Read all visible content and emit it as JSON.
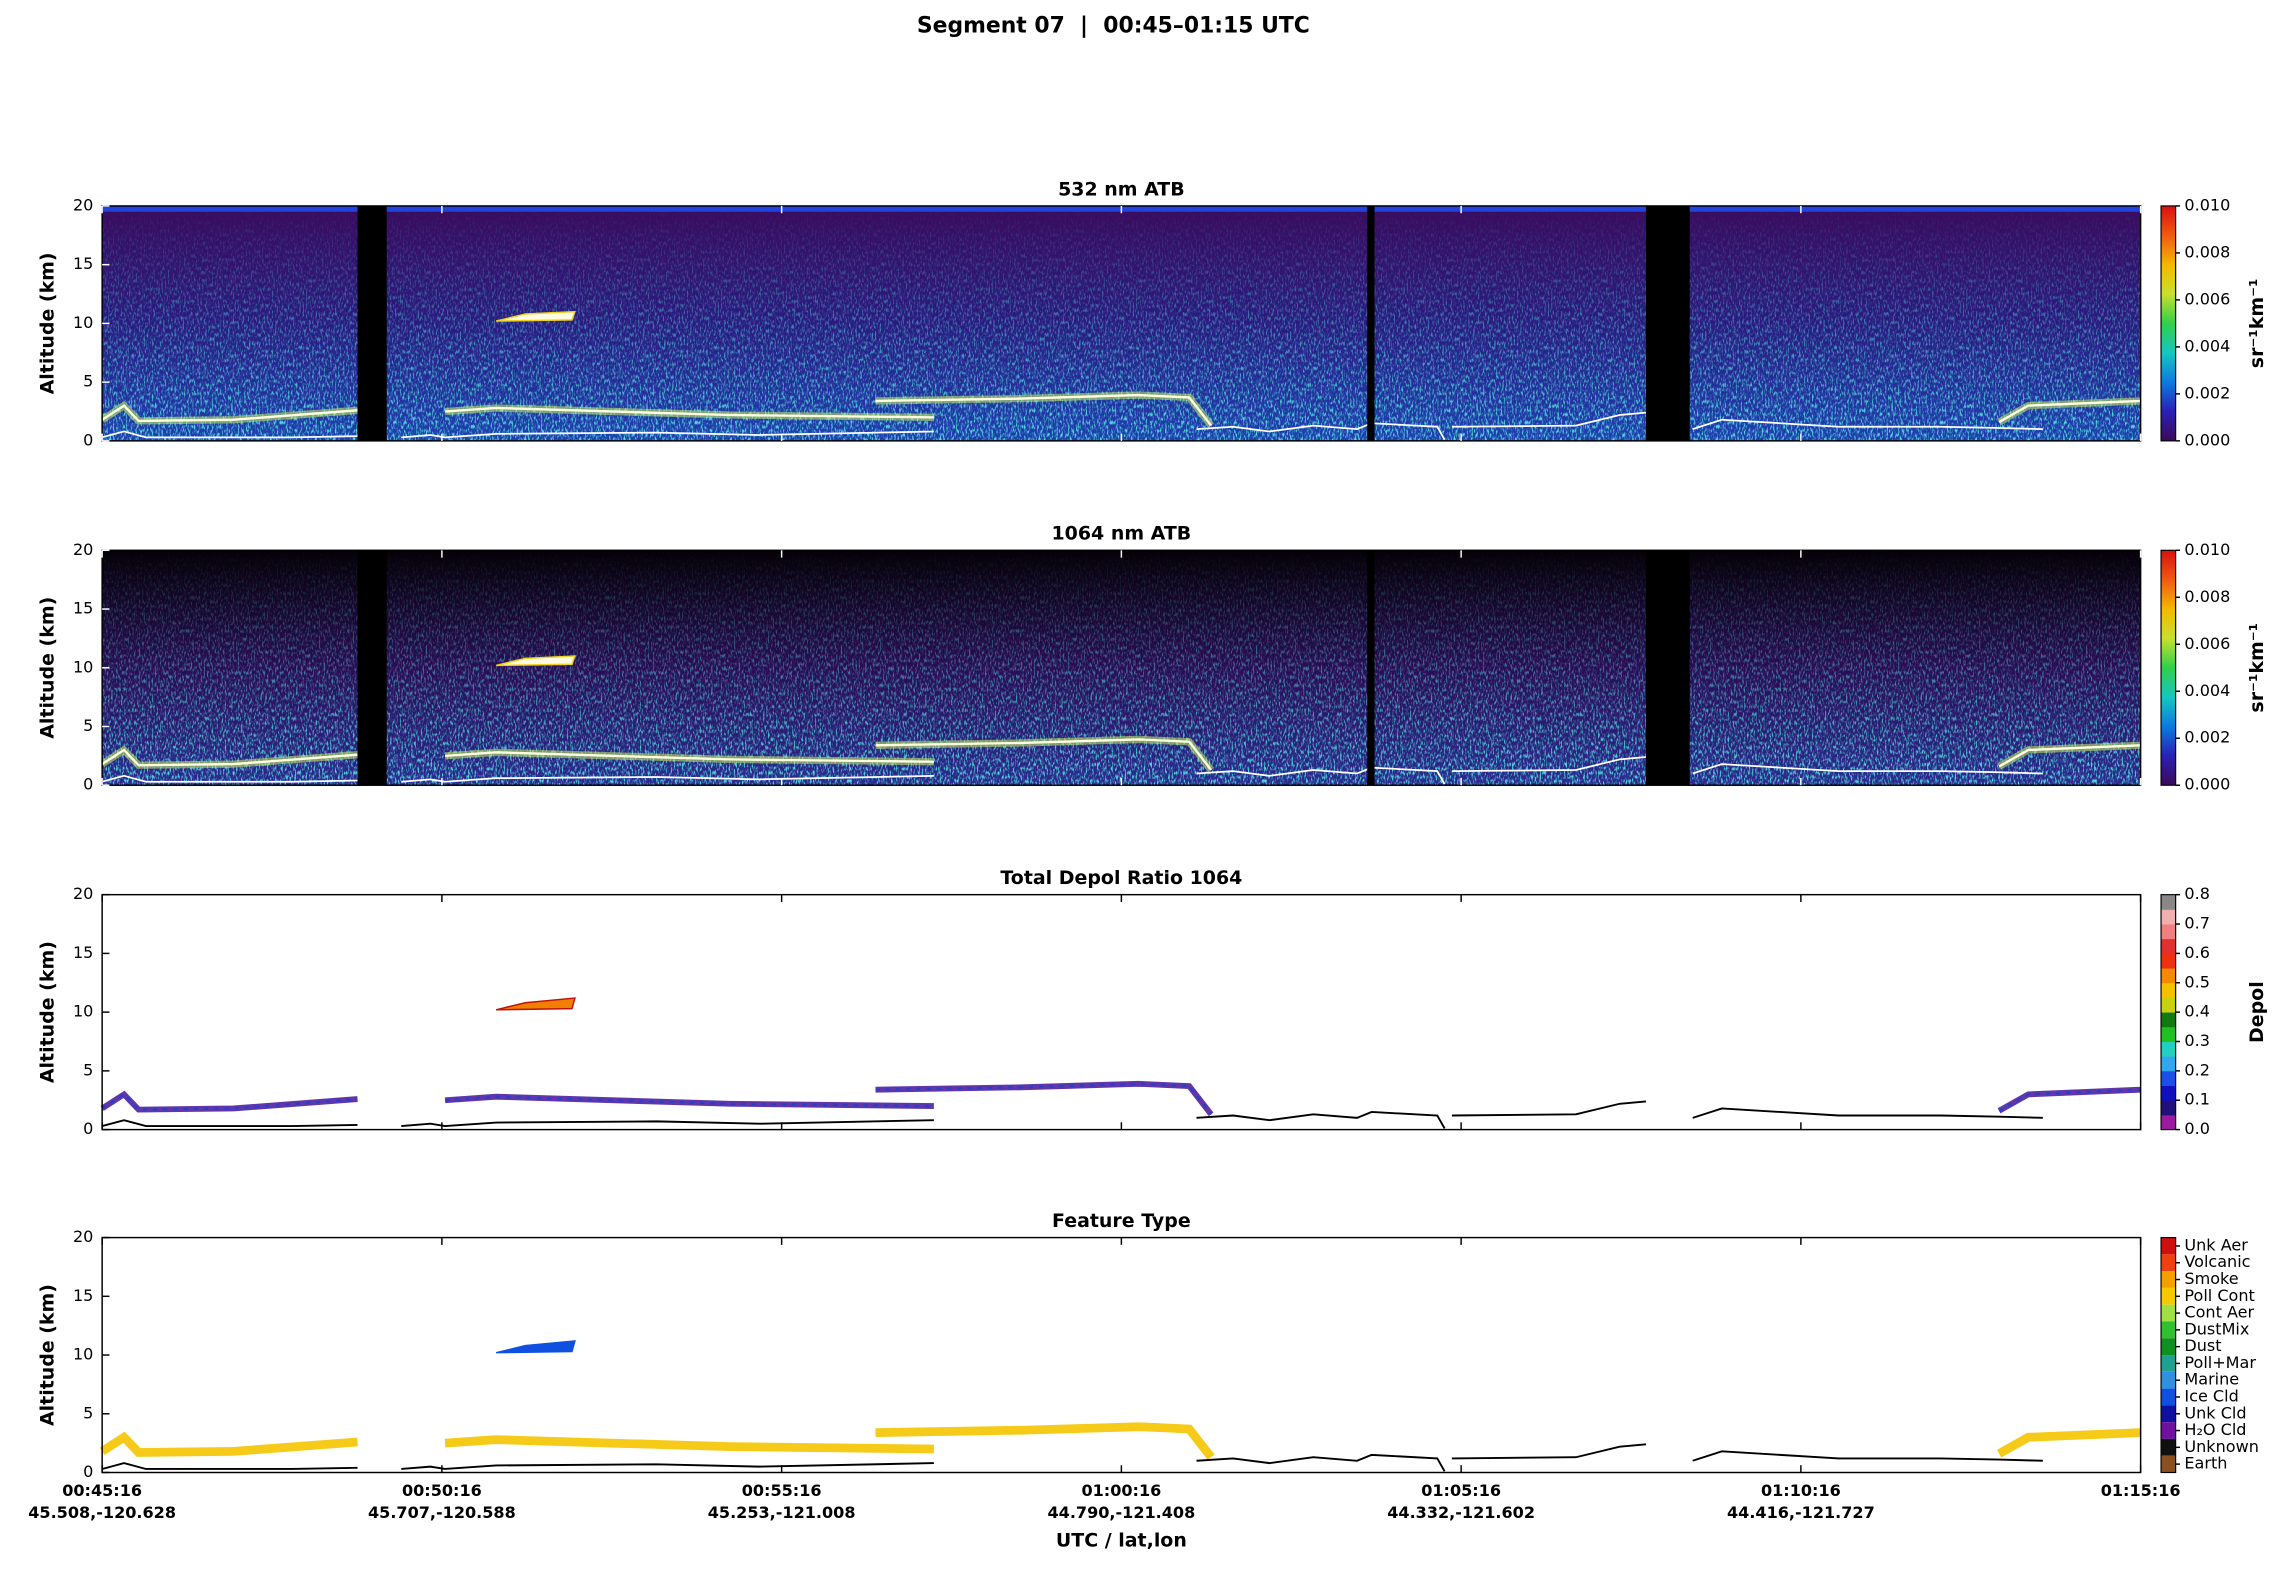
{
  "title": "Segment 07  |  00:45–01:15 UTC",
  "chart_data": [
    {
      "type": "heatmap",
      "title": "532 nm ATB",
      "ylabel": "Altitude (km)",
      "ylim": [
        0,
        20
      ],
      "yticks": [
        0,
        5,
        10,
        15,
        20
      ],
      "background": [
        "#3a0c5e",
        "#2a1a80",
        "#1e3fb0"
      ],
      "top_band": "#2244dd",
      "colorbar": {
        "label": "sr⁻¹km⁻¹",
        "lim": [
          0,
          0.01
        ],
        "ticks": [
          {
            "value": 0,
            "label": "0.000"
          },
          {
            "value": 0.002,
            "label": "0.002"
          },
          {
            "value": 0.004,
            "label": "0.004"
          },
          {
            "value": 0.006,
            "label": "0.006"
          },
          {
            "value": 0.008,
            "label": "0.008"
          },
          {
            "value": 0.01,
            "label": "0.010"
          }
        ],
        "colors": [
          "#3b0a57",
          "#2a1fb5",
          "#0a7be0",
          "#12c8c0",
          "#2ed14a",
          "#c8e02a",
          "#f5b800",
          "#f05a10",
          "#d81010"
        ]
      }
    },
    {
      "type": "heatmap",
      "title": "1064 nm ATB",
      "ylabel": "Altitude (km)",
      "ylim": [
        0,
        20
      ],
      "yticks": [
        0,
        5,
        10,
        15,
        20
      ],
      "background": [
        "#050208",
        "#2a0c55",
        "#2a2a90"
      ],
      "colorbar": {
        "label": "sr⁻¹km⁻¹",
        "lim": [
          0,
          0.01
        ],
        "ticks": [
          {
            "value": 0,
            "label": "0.000"
          },
          {
            "value": 0.002,
            "label": "0.002"
          },
          {
            "value": 0.004,
            "label": "0.004"
          },
          {
            "value": 0.006,
            "label": "0.006"
          },
          {
            "value": 0.008,
            "label": "0.008"
          },
          {
            "value": 0.01,
            "label": "0.010"
          }
        ],
        "colors": [
          "#3b0a57",
          "#2a1fb5",
          "#0a7be0",
          "#12c8c0",
          "#2ed14a",
          "#c8e02a",
          "#f5b800",
          "#f05a10",
          "#d81010"
        ]
      }
    },
    {
      "type": "heatmap",
      "title": "Total Depol Ratio 1064",
      "ylabel": "Altitude (km)",
      "ylim": [
        0,
        20
      ],
      "yticks": [
        0,
        5,
        10,
        15,
        20
      ],
      "colorbar": {
        "label": "Depol",
        "lim": [
          0,
          0.8
        ],
        "ticks": [
          {
            "value": 0,
            "label": "0.0"
          },
          {
            "value": 0.1,
            "label": "0.1"
          },
          {
            "value": 0.2,
            "label": "0.2"
          },
          {
            "value": 0.3,
            "label": "0.3"
          },
          {
            "value": 0.4,
            "label": "0.4"
          },
          {
            "value": 0.5,
            "label": "0.5"
          },
          {
            "value": 0.6,
            "label": "0.6"
          },
          {
            "value": 0.7,
            "label": "0.7"
          },
          {
            "value": 0.8,
            "label": "0.8"
          }
        ],
        "colors": [
          "#9a1aa0",
          "#20107a",
          "#1010c0",
          "#1a50e8",
          "#30a8f0",
          "#20d0c0",
          "#20c020",
          "#107a10",
          "#c8d010",
          "#f5c000",
          "#f58a00",
          "#f03010",
          "#e03030",
          "#f08080",
          "#f0b0b0",
          "#888888"
        ]
      }
    },
    {
      "type": "heatmap",
      "title": "Feature Type",
      "ylabel": "Altitude (km)",
      "ylim": [
        0,
        20
      ],
      "yticks": [
        0,
        5,
        10,
        15,
        20
      ],
      "colorbar": {
        "classes": [
          {
            "label": "Unk Aer",
            "color": "#d01010"
          },
          {
            "label": "Volcanic",
            "color": "#f04010"
          },
          {
            "label": "Smoke",
            "color": "#f5a000"
          },
          {
            "label": "Poll Cont",
            "color": "#f5c800"
          },
          {
            "label": "Cont Aer",
            "color": "#a0e040"
          },
          {
            "label": "DustMix",
            "color": "#30c030"
          },
          {
            "label": "Dust",
            "color": "#109020"
          },
          {
            "label": "Poll+Mar",
            "color": "#20a090"
          },
          {
            "label": "Marine",
            "color": "#3090e0"
          },
          {
            "label": "Ice Cld",
            "color": "#1050e0"
          },
          {
            "label": "Unk Cld",
            "color": "#1010a0"
          },
          {
            "label": "H₂O Cld",
            "color": "#7010a0"
          },
          {
            "label": "Unknown",
            "color": "#101010"
          },
          {
            "label": "Earth",
            "color": "#8a5020"
          }
        ]
      },
      "xlabel": "UTC / lat,lon",
      "x": [
        "00:45:16",
        "00:50:16",
        "00:55:16",
        "01:00:16",
        "01:05:16",
        "01:10:16",
        "01:15:16"
      ],
      "x_latlon": [
        "45.508,-120.628",
        "45.707,-120.588",
        "45.253,-121.008",
        "44.790,-121.408",
        "44.332,-121.602",
        "44.416,-121.727",
        null
      ]
    }
  ]
}
